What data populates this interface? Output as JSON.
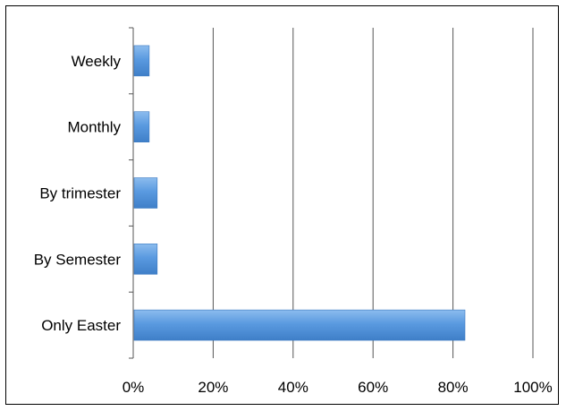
{
  "chart_data": {
    "type": "bar",
    "orientation": "horizontal",
    "title": "",
    "xlabel": "",
    "ylabel": "",
    "categories": [
      "Weekly",
      "Monthly",
      "By trimester",
      "By Semester",
      "Only Easter"
    ],
    "values": [
      4,
      4,
      6,
      6,
      83
    ],
    "unit": "%",
    "xlim": [
      0,
      100
    ],
    "x_ticks": [
      "0%",
      "20%",
      "40%",
      "60%",
      "80%",
      "100%"
    ],
    "grid": "vertical",
    "legend": "none",
    "bar_color": "#4f90d8",
    "bar_color_light": "#8cbcee"
  }
}
